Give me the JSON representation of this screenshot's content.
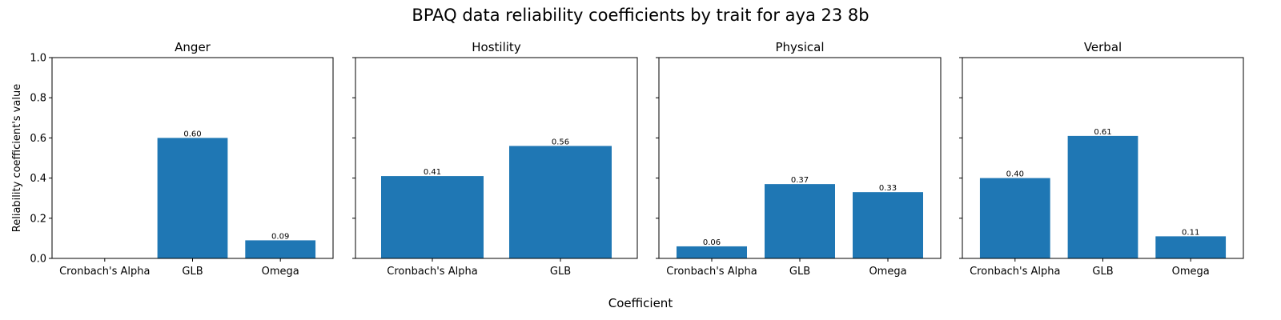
{
  "chart_data": {
    "type": "bar",
    "title": "BPAQ data reliability coefficients by trait for aya 23 8b",
    "xlabel": "Coefficient",
    "ylabel": "Reliability coefficient's value",
    "ylim": [
      0,
      1.0
    ],
    "yticks": [
      "0.0",
      "0.2",
      "0.4",
      "0.6",
      "0.8",
      "1.0"
    ],
    "bar_color": "#1f77b4",
    "grid": false,
    "panels": [
      {
        "title": "Anger",
        "categories": [
          "Cronbach's Alpha",
          "GLB",
          "Omega"
        ],
        "values": [
          0,
          0.6,
          0.09
        ],
        "labels": [
          "",
          "0.60",
          "0.09"
        ]
      },
      {
        "title": "Hostility",
        "categories": [
          "Cronbach's Alpha",
          "GLB"
        ],
        "values": [
          0.41,
          0.56
        ],
        "labels": [
          "0.41",
          "0.56"
        ]
      },
      {
        "title": "Physical",
        "categories": [
          "Cronbach's Alpha",
          "GLB",
          "Omega"
        ],
        "values": [
          0.06,
          0.37,
          0.33
        ],
        "labels": [
          "0.06",
          "0.37",
          "0.33"
        ]
      },
      {
        "title": "Verbal",
        "categories": [
          "Cronbach's Alpha",
          "GLB",
          "Omega"
        ],
        "values": [
          0.4,
          0.61,
          0.11
        ],
        "labels": [
          "0.40",
          "0.61",
          "0.11"
        ]
      }
    ]
  }
}
